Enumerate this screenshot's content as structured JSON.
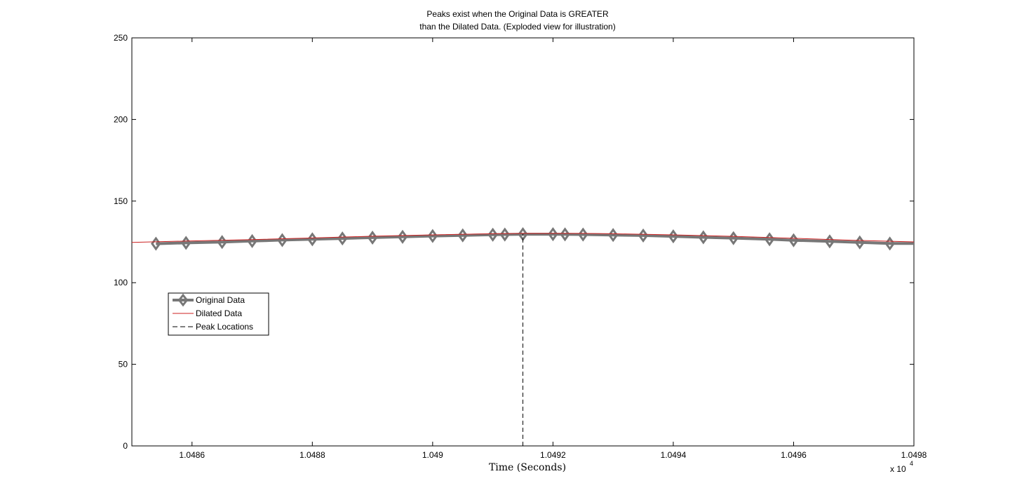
{
  "chart_data": {
    "type": "line",
    "title": [
      "Peaks exist when the Original Data is GREATER",
      "than the Dilated Data. (Exploded view for illustration)"
    ],
    "xlabel": "Time (Seconds)",
    "ylabel": "",
    "x_exponent_label": "x 10",
    "x_exponent_power": "4",
    "xlim": [
      10485,
      10498
    ],
    "ylim": [
      0,
      250
    ],
    "x_ticks": [
      10486,
      10488,
      10490,
      10492,
      10494,
      10496,
      10498
    ],
    "x_tick_labels": [
      "1.0486",
      "1.0488",
      "1.049",
      "1.0492",
      "1.0494",
      "1.0496",
      "1.0498"
    ],
    "y_ticks": [
      0,
      50,
      100,
      150,
      200,
      250
    ],
    "y_tick_labels": [
      "0",
      "50",
      "100",
      "150",
      "200",
      "250"
    ],
    "grid": false,
    "legend_position": "middle-left",
    "series": [
      {
        "name": "Original Data",
        "style": "line-diamond-markers",
        "color": "#777777",
        "x": [
          10485.4,
          10485.9,
          10486.5,
          10487.0,
          10487.5,
          10488.0,
          10488.5,
          10489.0,
          10489.5,
          10490.0,
          10490.5,
          10491.0,
          10491.2,
          10491.5,
          10492.0,
          10492.2,
          10492.5,
          10493.0,
          10493.5,
          10494.0,
          10494.5,
          10495.0,
          10495.6,
          10496.0,
          10496.6,
          10497.1,
          10497.6,
          10498.0
        ],
        "y": [
          123.9,
          124.4,
          124.9,
          125.5,
          126.1,
          126.6,
          127.1,
          127.6,
          128.1,
          128.6,
          129.0,
          129.4,
          129.5,
          129.7,
          129.7,
          129.6,
          129.5,
          129.2,
          128.9,
          128.4,
          127.8,
          127.3,
          126.6,
          126.0,
          125.3,
          124.7,
          124.0,
          124.0
        ],
        "marker_count": 27
      },
      {
        "name": "Dilated Data",
        "style": "line",
        "color": "#cc2222",
        "x": [
          10485.0,
          10486.0,
          10487.0,
          10488.0,
          10489.0,
          10490.0,
          10491.0,
          10491.5,
          10492.0,
          10492.5,
          10493.0,
          10494.0,
          10495.0,
          10496.0,
          10497.0,
          10498.0
        ],
        "y": [
          124.7,
          125.6,
          126.4,
          127.4,
          128.5,
          129.3,
          130.0,
          130.2,
          130.2,
          130.2,
          130.0,
          129.3,
          128.4,
          127.2,
          126.0,
          125.0
        ]
      },
      {
        "name": "Peak Locations",
        "style": "dashed-vertical",
        "color": "#000000",
        "x": [
          10491.5
        ],
        "y_from": 0,
        "y_to": 129.7
      }
    ]
  }
}
